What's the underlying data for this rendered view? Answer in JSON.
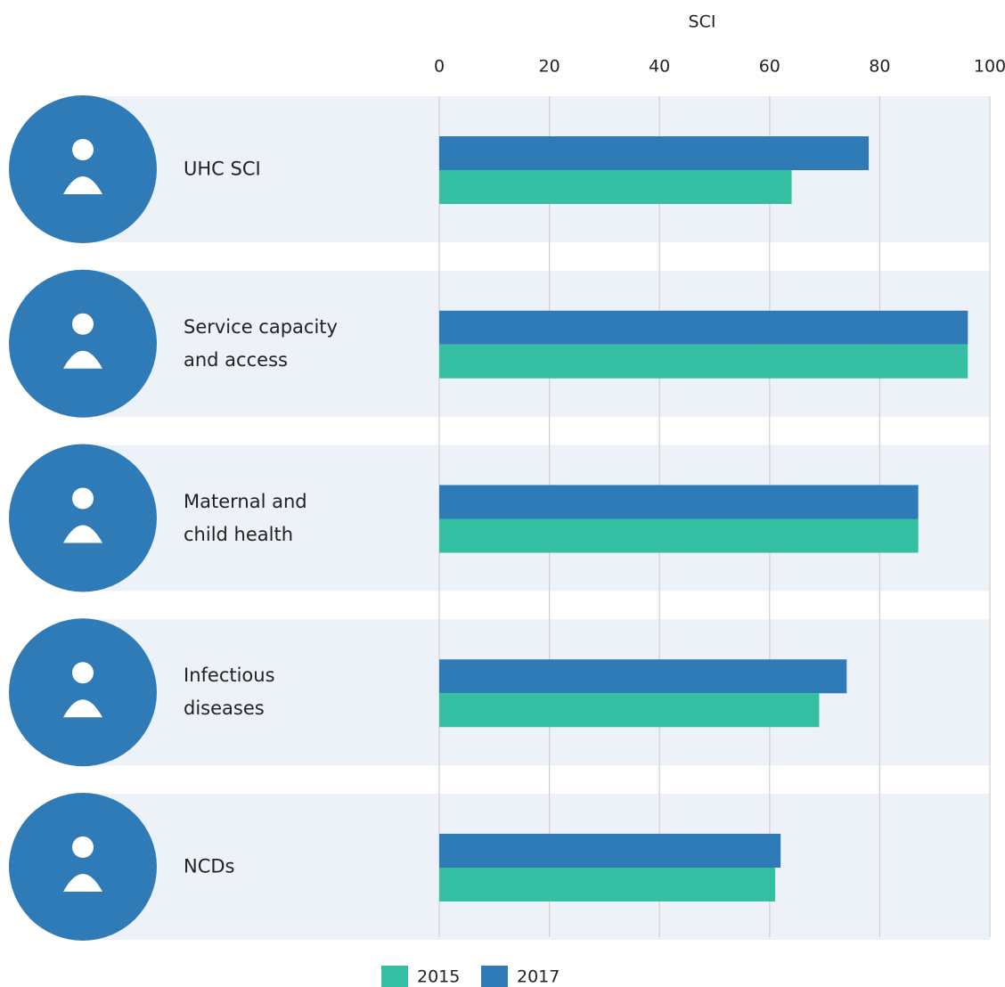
{
  "chart_data": {
    "type": "bar",
    "orientation": "horizontal",
    "x_label": "SCI",
    "categories": [
      "UHC SCI",
      "Service capacity\nand access",
      "Maternal and\nchild health",
      "Infectious\ndiseases",
      "NCDs"
    ],
    "series": [
      {
        "name": "2015",
        "color": "#35bfa2",
        "values": [
          64,
          96,
          87,
          69,
          61
        ]
      },
      {
        "name": "2017",
        "color": "#2f7bb7",
        "values": [
          78,
          96,
          87,
          74,
          62
        ]
      }
    ],
    "xlim": [
      0,
      100
    ],
    "xticks": [
      0,
      20,
      40,
      60,
      80,
      100
    ],
    "grid": true,
    "legend": "bottom"
  }
}
